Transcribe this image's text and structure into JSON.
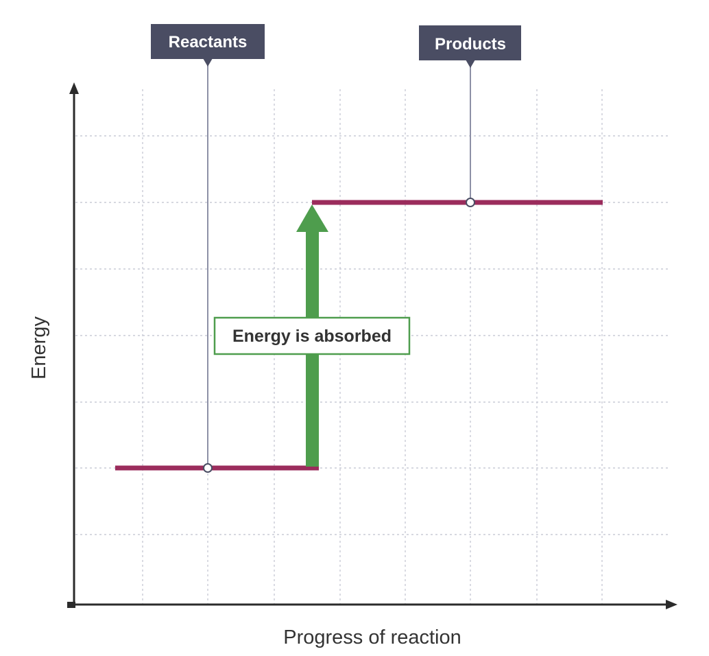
{
  "diagram": {
    "type": "energy-level-diagram",
    "reactants_label": "Reactants",
    "products_label": "Products",
    "annotation": "Energy is absorbed",
    "y_axis_label": "Energy",
    "x_axis_label": "Progress of reaction",
    "reactants_energy_level": 2,
    "products_energy_level": 6,
    "energy_grid_divisions": 8
  },
  "colors": {
    "level_line": "#9b2c5c",
    "arrow": "#4e9d4d",
    "tag_background": "#4a4d63",
    "callout_border": "#4e9d4d",
    "callout_text": "#333333"
  },
  "icons": {
    "energy_arrow": "arrow-up-icon",
    "label_marker": "circle-marker-icon"
  }
}
